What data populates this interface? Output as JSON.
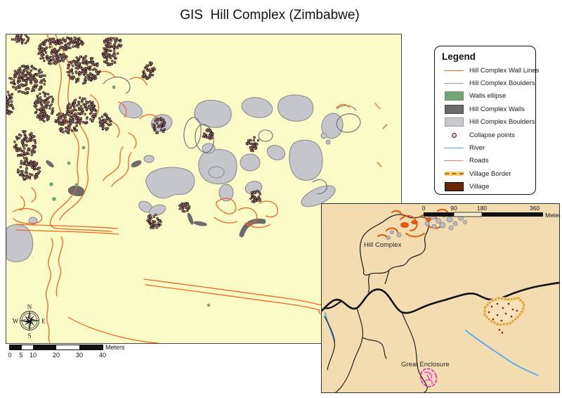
{
  "title": "GIS  Hill Complex (Zimbabwe)",
  "legend": {
    "title": "Legend",
    "items": [
      {
        "label": "Hill Complex Wall Lines",
        "symbol": "orange-line",
        "color": "#F0661E"
      },
      {
        "label": "Hill Complex Boulders",
        "symbol": "gray-line",
        "color": "#8F8F97"
      },
      {
        "label": "Walls ellipse",
        "symbol": "green-fill",
        "color": "#71A873"
      },
      {
        "label": "Hill Complex Walls",
        "symbol": "darkgray-fill",
        "color": "#696969"
      },
      {
        "label": "Hill Complex Boulders",
        "symbol": "lightgray-fill",
        "color": "#C9C9CD"
      },
      {
        "label": "Collapse points",
        "symbol": "point",
        "color": "#4A2424"
      },
      {
        "label": "River",
        "symbol": "blue-line",
        "color": "#4DA0F0"
      },
      {
        "label": "Roads",
        "symbol": "salmon-line",
        "color": "#F08068"
      },
      {
        "label": "Village Border",
        "symbol": "dashed-band",
        "color": "#F0CC70"
      },
      {
        "label": "Village",
        "symbol": "brown-fill",
        "color": "#6B2408"
      }
    ]
  },
  "main_map": {
    "compass": {
      "n": "N",
      "s": "S",
      "e": "E",
      "w": "W"
    },
    "scale_bar": {
      "ticks": [
        "0",
        "5",
        "10",
        "20",
        "30",
        "40"
      ],
      "unit": "Meters"
    }
  },
  "inset_map": {
    "scale_bar": {
      "ticks": [
        "0",
        "90",
        "180",
        "360"
      ],
      "unit": "Meters"
    },
    "labels": {
      "hill_complex": "Hill Complex",
      "great_enclosure": "Great Enclosure"
    }
  },
  "colors": {
    "map_background": "#FBFBC8",
    "inset_background": "#F2DCB0",
    "wall_lines": "#F0661E",
    "boulder_fill": "#C5C5CC",
    "boulder_outline": "#85858D",
    "walls_dark": "#6B6B6B",
    "walls_ellipse_green": "#71A873",
    "river_blue": "#4DA0F0",
    "roads_salmon": "#F08068",
    "village_brown": "#6B2408",
    "village_border_band": "#F0CC70",
    "village_border_dash": "#B06818",
    "collapse_point_fill": "#D8A2AA",
    "collapse_point_outline": "#2E1A1A",
    "great_enclosure_magenta": "#F018C8"
  }
}
